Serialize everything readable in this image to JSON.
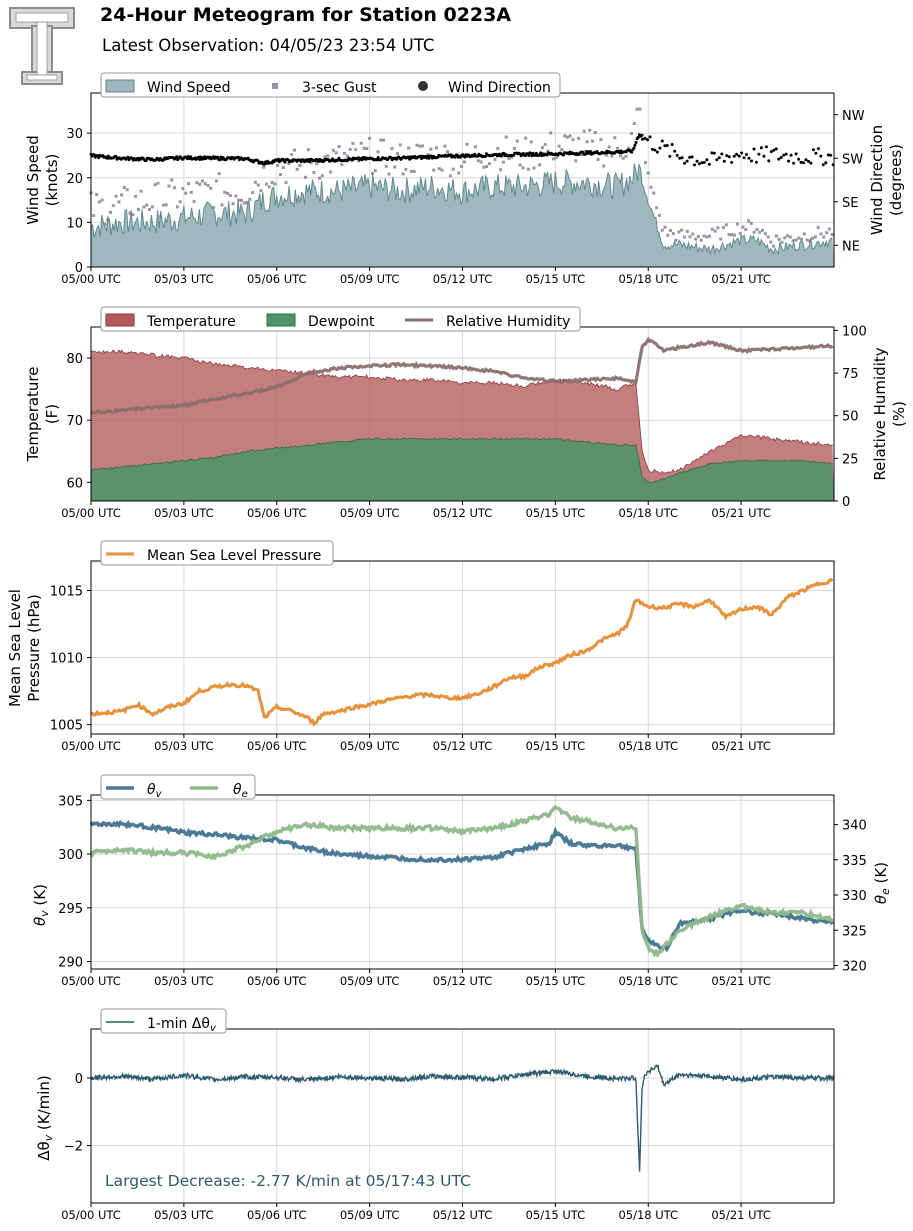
{
  "header": {
    "title": "24-Hour Meteogram for Station 0223A",
    "subtitle": "Latest Observation: 04/05/23 23:54 UTC",
    "logo_letter": "T"
  },
  "colors": {
    "wind_speed": "#9fb8be",
    "wind_speed_line": "#5f8a8f",
    "gust": "#7d6e8c",
    "wind_direction": "#000000",
    "temperature": "#b55a5a",
    "dewpoint": "#4a9468",
    "relative_humidity": "#8a706e",
    "rh_dark": "#6e2f2f",
    "mslp": "#e8913a",
    "theta_v": "#4a7a96",
    "theta_e": "#8fb88a",
    "dtheta": "#2e5a6e"
  },
  "chart_data": [
    {
      "id": "wind",
      "type": "area",
      "x_ticks": [
        "05/00 UTC",
        "05/03 UTC",
        "05/06 UTC",
        "05/09 UTC",
        "05/12 UTC",
        "05/15 UTC",
        "05/18 UTC",
        "05/21 UTC"
      ],
      "x_range_hours": [
        0,
        24
      ],
      "ylabel": "Wind Speed\n(knots)",
      "ylabel_lines": [
        "Wind Speed",
        "(knots)"
      ],
      "y2label_lines": [
        "Wind Direction",
        "(degrees)"
      ],
      "ylim": [
        0,
        39
      ],
      "y_ticks": [
        0,
        10,
        20,
        30
      ],
      "y2_range": [
        0,
        360
      ],
      "y2_ticks": [
        {
          "label": "NE",
          "value": 45
        },
        {
          "label": "SE",
          "value": 135
        },
        {
          "label": "SW",
          "value": 225
        },
        {
          "label": "NW",
          "value": 315
        }
      ],
      "legend": [
        "Wind Speed",
        "3-sec Gust",
        "Wind Direction"
      ],
      "legend_position": "top-left",
      "grid": true,
      "series": [
        {
          "name": "Wind Speed",
          "x": [
            0,
            1,
            2,
            3,
            4,
            5,
            5.6,
            6,
            7,
            8,
            9,
            10,
            11,
            12,
            13,
            14,
            15,
            16,
            17,
            17.5,
            17.7,
            18,
            18.5,
            19,
            20,
            21,
            21.5,
            22,
            23,
            24
          ],
          "values": [
            9,
            10,
            10,
            11,
            12,
            12,
            15,
            16,
            17,
            17,
            18,
            17,
            18,
            17,
            18,
            18,
            19,
            19,
            18,
            20,
            22,
            15,
            5,
            5,
            4,
            6,
            6,
            4,
            5,
            6
          ]
        },
        {
          "name": "3-sec Gust",
          "x": [
            0,
            1,
            2,
            3,
            4,
            5,
            5.6,
            6,
            7,
            8,
            9,
            10,
            11,
            12,
            13,
            14,
            15,
            16,
            17,
            17.5,
            17.7,
            18,
            18.5,
            19,
            20,
            21,
            21.5,
            22,
            23,
            24
          ],
          "values": [
            13,
            14,
            15,
            16,
            17,
            17,
            21,
            22,
            23,
            24,
            25,
            24,
            25,
            24,
            26,
            25,
            27,
            27,
            26,
            29,
            35,
            20,
            8,
            7,
            7,
            9,
            9,
            6,
            7,
            8
          ]
        },
        {
          "name": "Wind Direction",
          "x": [
            0,
            1,
            2,
            3,
            4,
            5,
            5.6,
            6,
            7,
            8,
            9,
            10,
            11,
            12,
            13,
            14,
            15,
            16,
            17,
            17.5,
            17.7,
            18,
            18.5,
            19,
            20,
            21,
            21.5,
            22,
            23,
            24
          ],
          "values": [
            230,
            225,
            222,
            226,
            225,
            224,
            215,
            220,
            220,
            222,
            224,
            225,
            228,
            230,
            232,
            233,
            234,
            236,
            238,
            240,
            275,
            260,
            245,
            230,
            218,
            235,
            230,
            232,
            228,
            228
          ]
        }
      ]
    },
    {
      "id": "thermo",
      "type": "area",
      "x_ticks": [
        "05/00 UTC",
        "05/03 UTC",
        "05/06 UTC",
        "05/09 UTC",
        "05/12 UTC",
        "05/15 UTC",
        "05/18 UTC",
        "05/21 UTC"
      ],
      "x_range_hours": [
        0,
        24
      ],
      "ylabel_lines": [
        "Temperature",
        "(F)"
      ],
      "y2label_lines": [
        "Relative Humidity",
        "(%)"
      ],
      "ylim": [
        57,
        85
      ],
      "y_ticks": [
        60,
        70,
        80
      ],
      "y2lim": [
        0,
        102
      ],
      "y2_ticks": [
        0,
        25,
        50,
        75,
        100
      ],
      "legend": [
        "Temperature",
        "Dewpoint",
        "Relative Humidity"
      ],
      "legend_position": "top-left",
      "grid": true,
      "series": [
        {
          "name": "Temperature",
          "x": [
            0,
            1,
            2,
            3,
            4,
            5,
            6,
            7,
            8,
            9,
            10,
            11,
            12,
            13,
            14,
            15,
            16,
            17,
            17.6,
            17.8,
            18,
            18.5,
            19,
            20,
            21,
            22,
            23,
            24
          ],
          "values": [
            81,
            81,
            80.5,
            80,
            79,
            78.5,
            78,
            77.5,
            77,
            77,
            76.5,
            76.5,
            76,
            76,
            75.5,
            76.5,
            76,
            75,
            76,
            65,
            62,
            61.5,
            62,
            65,
            67.5,
            67,
            66.5,
            66
          ]
        },
        {
          "name": "Dewpoint",
          "x": [
            0,
            1,
            2,
            3,
            4,
            5,
            6,
            7,
            8,
            9,
            10,
            11,
            12,
            13,
            14,
            15,
            16,
            17,
            17.6,
            17.8,
            18,
            18.5,
            19,
            20,
            21,
            22,
            23,
            24
          ],
          "values": [
            62,
            62.5,
            63,
            63.5,
            64,
            65,
            65.5,
            66,
            66.5,
            67,
            67,
            67,
            67,
            67,
            67,
            67,
            66.5,
            66,
            66,
            61,
            60,
            60.5,
            61.5,
            63,
            63.5,
            63.5,
            63.5,
            63
          ]
        },
        {
          "name": "Relative Humidity",
          "x": [
            0,
            1,
            2,
            3,
            4,
            5,
            6,
            7,
            8,
            9,
            10,
            11,
            12,
            13,
            14,
            15,
            16,
            17,
            17.6,
            17.8,
            18,
            18.5,
            19,
            20,
            21,
            22,
            23,
            24
          ],
          "values": [
            52,
            53,
            55,
            56,
            60,
            63,
            67,
            75,
            78,
            79,
            80,
            79,
            78,
            76,
            72,
            70,
            71,
            72,
            70,
            90,
            95,
            88,
            90,
            93,
            88,
            89,
            90,
            91
          ]
        }
      ]
    },
    {
      "id": "pressure",
      "type": "line",
      "x_ticks": [
        "05/00 UTC",
        "05/03 UTC",
        "05/06 UTC",
        "05/09 UTC",
        "05/12 UTC",
        "05/15 UTC",
        "05/18 UTC",
        "05/21 UTC"
      ],
      "x_range_hours": [
        0,
        24
      ],
      "ylabel_lines": [
        "Mean Sea Level",
        "Pressure (hPa)"
      ],
      "ylim": [
        1004.3,
        1017.2
      ],
      "y_ticks": [
        1005,
        1010,
        1015
      ],
      "legend": [
        "Mean Sea Level Pressure"
      ],
      "legend_position": "top-left",
      "grid": true,
      "series": [
        {
          "name": "Mean Sea Level Pressure",
          "x": [
            0,
            0.5,
            1,
            1.5,
            2,
            2.5,
            3,
            3.5,
            4,
            4.5,
            5,
            5.4,
            5.6,
            6,
            6.5,
            7,
            7.2,
            7.5,
            8,
            8.5,
            9,
            9.5,
            10,
            10.5,
            11,
            11.5,
            12,
            12.5,
            13,
            13.5,
            14,
            14.5,
            15,
            15.5,
            16,
            16.5,
            17,
            17.3,
            17.6,
            18,
            18.5,
            19,
            19.5,
            20,
            20.5,
            21,
            21.5,
            22,
            22.5,
            23,
            23.5,
            24
          ],
          "values": [
            1005.8,
            1005.9,
            1006,
            1006.5,
            1005.8,
            1006.3,
            1006.6,
            1007.5,
            1007.8,
            1008,
            1007.9,
            1007.5,
            1005.5,
            1006.3,
            1006,
            1005.5,
            1005.1,
            1005.8,
            1006,
            1006.3,
            1006.5,
            1006.8,
            1007,
            1007.2,
            1007.2,
            1007,
            1007,
            1007.3,
            1007.8,
            1008.5,
            1008.6,
            1009.3,
            1009.6,
            1010.2,
            1010.5,
            1011.3,
            1011.8,
            1012.3,
            1014.3,
            1013.8,
            1013.7,
            1014,
            1013.8,
            1014.3,
            1013,
            1013.6,
            1013.8,
            1013.2,
            1014.5,
            1015,
            1015.5,
            1015.8
          ]
        }
      ]
    },
    {
      "id": "theta",
      "type": "line",
      "x_ticks": [
        "05/00 UTC",
        "05/03 UTC",
        "05/06 UTC",
        "05/09 UTC",
        "05/12 UTC",
        "05/15 UTC",
        "05/18 UTC",
        "05/21 UTC"
      ],
      "x_range_hours": [
        0,
        24
      ],
      "ylabel": "θv (K)",
      "y2label": "θe (K)",
      "ylim": [
        289.3,
        305.5
      ],
      "y_ticks": [
        290,
        295,
        300,
        305
      ],
      "y2lim": [
        319.5,
        344.2
      ],
      "y2_ticks": [
        320,
        325,
        330,
        335,
        340
      ],
      "legend": [
        "θv",
        "θe"
      ],
      "legend_position": "top-left",
      "grid": true,
      "series": [
        {
          "name": "θv",
          "x": [
            0,
            1,
            2,
            3,
            4,
            5,
            6,
            7,
            8,
            9,
            10,
            11,
            12,
            13,
            14,
            14.8,
            15,
            15.5,
            16,
            17,
            17.6,
            17.8,
            18,
            18.3,
            18.6,
            19,
            20,
            21,
            21.5,
            22,
            23,
            24
          ],
          "values": [
            302.8,
            302.8,
            302.5,
            302,
            301.8,
            301.5,
            301.3,
            300.5,
            300,
            299.8,
            299.6,
            299.5,
            299.5,
            299.7,
            300.5,
            301,
            302,
            301,
            300.8,
            300.8,
            300.5,
            293,
            292,
            291.5,
            291.2,
            293.5,
            294,
            294.8,
            294.5,
            294.5,
            294,
            293.6
          ]
        },
        {
          "name": "θe",
          "x": [
            0,
            1,
            2,
            3,
            4,
            5,
            6,
            7,
            8,
            9,
            10,
            11,
            12,
            13,
            14,
            14.8,
            15,
            15.5,
            16,
            17,
            17.6,
            17.8,
            18,
            18.3,
            18.6,
            19,
            20,
            21,
            21.5,
            22,
            23,
            24
          ],
          "values": [
            336,
            336.5,
            336,
            336,
            335.5,
            337,
            339,
            340,
            339.5,
            339.5,
            339.5,
            339.5,
            339,
            339.5,
            340.5,
            341.5,
            342.5,
            341,
            340.5,
            339.5,
            339.5,
            325,
            322.5,
            321.5,
            323,
            325,
            327,
            328.5,
            328,
            327.5,
            327.5,
            326.5
          ]
        }
      ]
    },
    {
      "id": "dtheta",
      "type": "line",
      "x_ticks": [
        "05/00 UTC",
        "05/03 UTC",
        "05/06 UTC",
        "05/09 UTC",
        "05/12 UTC",
        "05/15 UTC",
        "05/18 UTC",
        "05/21 UTC"
      ],
      "x_range_hours": [
        0,
        24
      ],
      "ylabel": "Δθv (K/min)",
      "ylim": [
        -3.7,
        1.45
      ],
      "y_ticks": [
        -2,
        0
      ],
      "legend": [
        "1-min Δθv"
      ],
      "legend_position": "top-left",
      "grid": true,
      "annotation": "Largest Decrease: -2.77 K/min at 05/17:43 UTC",
      "series": [
        {
          "name": "1-min Δθv",
          "x": [
            0,
            1,
            2,
            3,
            4,
            5,
            6,
            7,
            8,
            9,
            10,
            11,
            12,
            13,
            14,
            15,
            16,
            17,
            17.6,
            17.72,
            17.8,
            17.9,
            18,
            18.3,
            18.5,
            19,
            20,
            21,
            22,
            23,
            24
          ],
          "values": [
            0,
            0.05,
            -0.03,
            0.08,
            -0.05,
            0.03,
            0.02,
            -0.06,
            0.04,
            0,
            -0.04,
            0.05,
            0.02,
            -0.03,
            0.1,
            0.2,
            0.05,
            -0.02,
            0,
            -2.77,
            -0.3,
            0.1,
            0.2,
            0.35,
            -0.2,
            0.1,
            0.05,
            -0.05,
            0.03,
            0,
            0
          ]
        }
      ]
    }
  ]
}
